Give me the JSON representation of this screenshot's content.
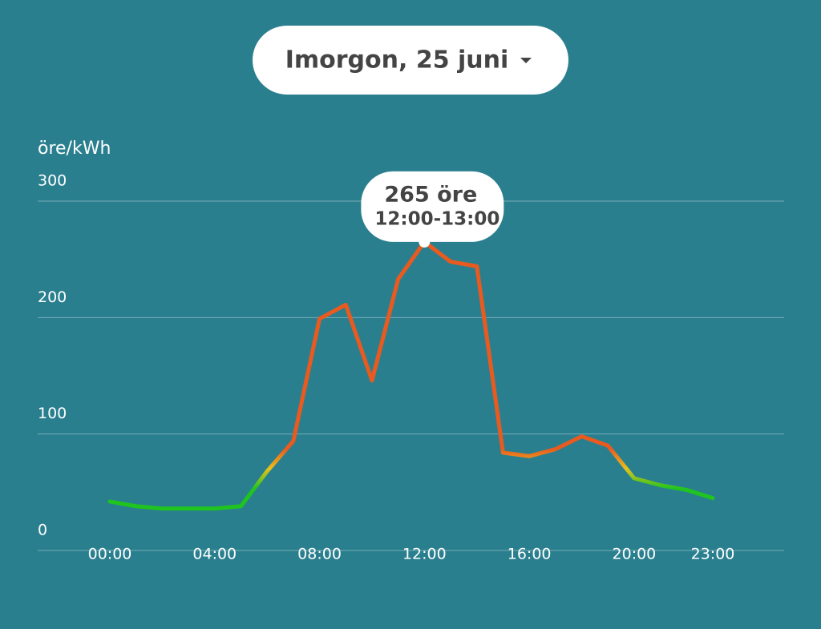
{
  "selector": {
    "label": "Imorgon, 25 juni"
  },
  "chart_data": {
    "type": "line",
    "y_label": "öre/kWh",
    "categories": [
      "00:00",
      null,
      null,
      null,
      "04:00",
      null,
      null,
      null,
      "08:00",
      null,
      null,
      null,
      "12:00",
      null,
      null,
      null,
      "16:00",
      null,
      null,
      null,
      "20:00",
      null,
      null,
      "23:00"
    ],
    "values": [
      42,
      38,
      36,
      36,
      36,
      38,
      68,
      94,
      199,
      211,
      146,
      233,
      265,
      248,
      244,
      84,
      81,
      87,
      98,
      90,
      62,
      56,
      52,
      45
    ],
    "colors": {
      "low": "#1fc41f",
      "mid": "#e6c21c",
      "high": "#ea5a1e"
    },
    "ylim": [
      0,
      300
    ],
    "yticks": [
      0,
      100,
      200,
      300
    ],
    "grid": true,
    "annotation": {
      "index": 12,
      "text": "265 öre",
      "subtext": "12:00-13:00"
    }
  }
}
